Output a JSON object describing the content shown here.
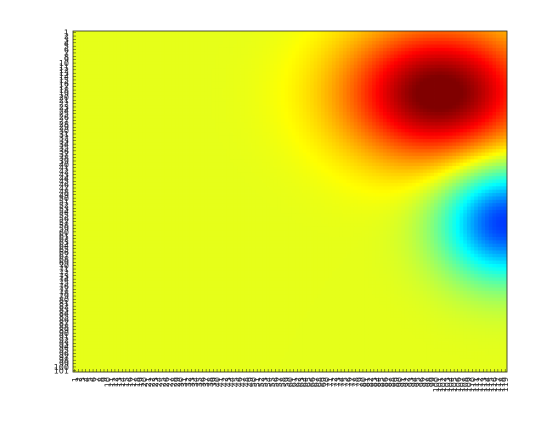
{
  "chart_data": {
    "type": "heatmap",
    "title": "",
    "xlabel": "",
    "ylabel": "",
    "rows": 101,
    "cols": 119,
    "xlim": [
      1,
      119
    ],
    "ylim": [
      1,
      101
    ],
    "y_direction": "reverse",
    "x_tick_labels": [
      "1",
      "2",
      "3",
      "4",
      "5",
      "6",
      "7",
      "8",
      "9",
      "10",
      "11",
      "12",
      "13",
      "14",
      "15",
      "16",
      "17",
      "18",
      "19",
      "20",
      "21",
      "22",
      "23",
      "24",
      "25",
      "26",
      "27",
      "28",
      "29",
      "30",
      "31",
      "32",
      "33",
      "34",
      "35",
      "36",
      "37",
      "38",
      "39",
      "40",
      "41",
      "42",
      "43",
      "44",
      "45",
      "46",
      "47",
      "48",
      "49",
      "50",
      "51",
      "52",
      "53",
      "54",
      "55",
      "56",
      "57",
      "58",
      "59",
      "60",
      "61",
      "62",
      "63",
      "64",
      "65",
      "66",
      "67",
      "68",
      "69",
      "70",
      "71",
      "72",
      "73",
      "74",
      "75",
      "76",
      "77",
      "78",
      "79",
      "80",
      "81",
      "82",
      "83",
      "84",
      "85",
      "86",
      "87",
      "88",
      "89",
      "90",
      "91",
      "92",
      "93",
      "94",
      "95",
      "96",
      "97",
      "98",
      "99",
      "100",
      "101",
      "102",
      "103",
      "104",
      "105",
      "106",
      "107",
      "108",
      "109",
      "110",
      "111",
      "112",
      "113",
      "114",
      "115",
      "116",
      "117",
      "118",
      "119"
    ],
    "y_tick_labels": [
      "1",
      "2",
      "3",
      "4",
      "5",
      "6",
      "7",
      "8",
      "9",
      "10",
      "11",
      "12",
      "13",
      "14",
      "15",
      "16",
      "17",
      "18",
      "19",
      "20",
      "21",
      "22",
      "23",
      "24",
      "25",
      "26",
      "27",
      "28",
      "29",
      "30",
      "31",
      "32",
      "33",
      "34",
      "35",
      "36",
      "37",
      "38",
      "39",
      "40",
      "41",
      "42",
      "43",
      "44",
      "45",
      "46",
      "47",
      "48",
      "49",
      "50",
      "51",
      "52",
      "53",
      "54",
      "55",
      "56",
      "57",
      "58",
      "59",
      "60",
      "61",
      "62",
      "63",
      "64",
      "65",
      "66",
      "67",
      "68",
      "69",
      "70",
      "71",
      "72",
      "73",
      "74",
      "75",
      "76",
      "77",
      "78",
      "79",
      "80",
      "81",
      "82",
      "83",
      "84",
      "85",
      "86",
      "87",
      "88",
      "89",
      "90",
      "91",
      "92",
      "93",
      "94",
      "95",
      "96",
      "97",
      "98",
      "99",
      "100",
      "101"
    ],
    "colormap": "jet",
    "color_range": [
      -1,
      1
    ],
    "grid": false,
    "legend": "none",
    "features": [
      {
        "name": "peak",
        "center_col": 101,
        "center_row": 19,
        "sigma_col": 18,
        "sigma_row": 14,
        "amplitude": 0.85
      },
      {
        "name": "trough",
        "center_col": 119,
        "center_row": 57,
        "sigma_col": 12,
        "sigma_row": 12,
        "amplitude": -0.85
      }
    ],
    "background_value": 0.2
  },
  "colors": {
    "axes_frame": "#262626",
    "page_background": "#ffffff"
  }
}
